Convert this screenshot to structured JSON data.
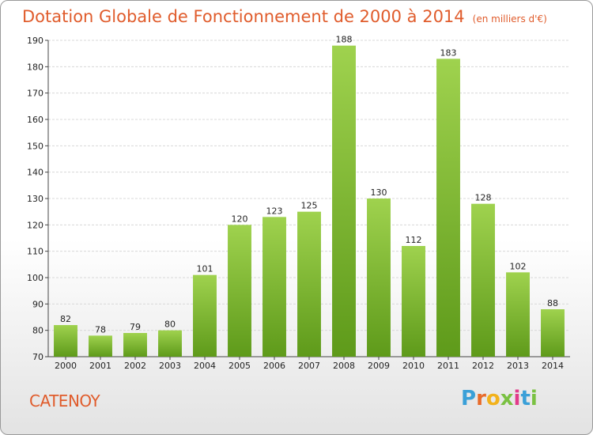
{
  "title": "Dotation Globale de Fonctionnement de 2000 à 2014",
  "subtitle": "(en milliers d'€)",
  "commune": "CATENOY",
  "logo": {
    "letters": [
      "P",
      "r",
      "o",
      "x",
      "i",
      "t",
      "i"
    ],
    "colors": [
      "#3aa0d8",
      "#e86b2a",
      "#f2b21c",
      "#7ac142",
      "#e23b8a",
      "#3aa0d8",
      "#7ac142"
    ]
  },
  "chart_data": {
    "type": "bar",
    "title": "Dotation Globale de Fonctionnement de 2000 à 2014",
    "subtitle": "(en milliers d'€)",
    "categories": [
      "2000",
      "2001",
      "2002",
      "2003",
      "2004",
      "2005",
      "2006",
      "2007",
      "2008",
      "2009",
      "2010",
      "2011",
      "2012",
      "2013",
      "2014"
    ],
    "values": [
      82,
      78,
      79,
      80,
      101,
      120,
      123,
      125,
      188,
      130,
      112,
      183,
      128,
      102,
      88
    ],
    "ylim": [
      70,
      190
    ],
    "yticks": [
      70,
      80,
      90,
      100,
      110,
      120,
      130,
      140,
      150,
      160,
      170,
      180,
      190
    ],
    "grid": true,
    "bar_color": "#8cc63f",
    "bar_color_dark": "#5e9a1a"
  }
}
